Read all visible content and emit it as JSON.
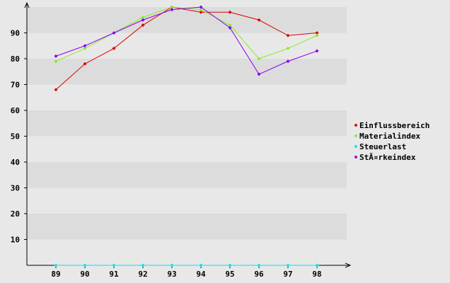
{
  "chart_data": {
    "type": "line",
    "title": "",
    "xlabel": "",
    "ylabel": "",
    "categories": [
      "89",
      "90",
      "91",
      "92",
      "93",
      "94",
      "95",
      "96",
      "97",
      "98"
    ],
    "ylim": [
      0,
      100
    ],
    "yticks": [
      10,
      20,
      30,
      40,
      50,
      60,
      70,
      80,
      90
    ],
    "grid": "horizontal alternating bands",
    "legend": "right",
    "series": [
      {
        "name": "Einflussbereich",
        "color": "#dd0000",
        "values": [
          68,
          78,
          84,
          93,
          100,
          98,
          98,
          95,
          89,
          90
        ]
      },
      {
        "name": "Materialindex",
        "color": "#88ee22",
        "values": [
          79,
          84,
          90,
          96,
          100,
          99,
          93,
          80,
          84,
          89
        ]
      },
      {
        "name": "Steuerlast",
        "color": "#00e5ee",
        "values": [
          0,
          0,
          0,
          0,
          0,
          0,
          0,
          0,
          0,
          0
        ]
      },
      {
        "name": "StÃ¤rkeindex",
        "color": "#8800ee",
        "values": [
          81,
          85,
          90,
          95,
          99,
          100,
          92,
          74,
          79,
          83
        ]
      }
    ]
  }
}
